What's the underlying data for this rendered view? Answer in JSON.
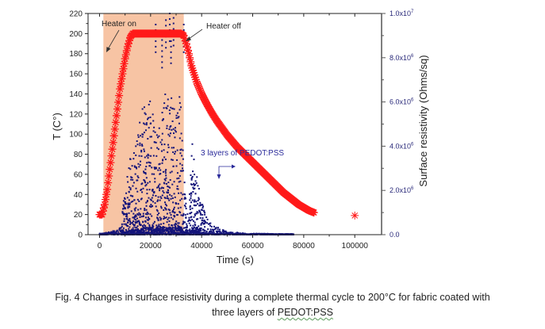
{
  "chart_data": {
    "type": "scatter",
    "title": "",
    "xlabel": "Time (s)",
    "ylabel_left": "T (C°)",
    "ylabel_right": "Surface resistivity (Ohms/sq)",
    "xlim": [
      -4500,
      110500
    ],
    "ylim_left": [
      0,
      220
    ],
    "ylim_right": [
      0,
      10000000
    ],
    "x_ticks": [
      0,
      20000,
      40000,
      60000,
      80000,
      100000
    ],
    "x_tick_labels": [
      "0",
      "20000",
      "40000",
      "60000",
      "80000",
      "100000"
    ],
    "y_left_ticks": [
      0,
      20,
      40,
      60,
      80,
      100,
      120,
      140,
      160,
      180,
      200,
      220
    ],
    "y_left_tick_labels": [
      "0",
      "20",
      "40",
      "60",
      "80",
      "100",
      "120",
      "140",
      "160",
      "180",
      "200",
      "220"
    ],
    "y_right_ticks": [
      0,
      2000000,
      4000000,
      6000000,
      8000000,
      10000000
    ],
    "y_right_tick_labels": [
      {
        "mantissa": "0.0",
        "exp": ""
      },
      {
        "mantissa": "2.0x10",
        "exp": "6"
      },
      {
        "mantissa": "4.0x10",
        "exp": "6"
      },
      {
        "mantissa": "6.0x10",
        "exp": "6"
      },
      {
        "mantissa": "8.0x10",
        "exp": "6"
      },
      {
        "mantissa": "1.0x10",
        "exp": "7"
      }
    ],
    "grid": false,
    "shaded_region": {
      "label": "Heater on period",
      "x_start": 1500,
      "x_end": 33000,
      "color": "#f7c4a4"
    },
    "series": [
      {
        "name": "Temperature",
        "axis": "left",
        "marker": "star",
        "color": "#ff1a1a",
        "points": [
          [
            0,
            20
          ],
          [
            1000,
            20
          ],
          [
            2000,
            30
          ],
          [
            3000,
            45
          ],
          [
            4000,
            65
          ],
          [
            5000,
            85
          ],
          [
            6000,
            105
          ],
          [
            7000,
            125
          ],
          [
            8000,
            145
          ],
          [
            9000,
            160
          ],
          [
            10000,
            175
          ],
          [
            11000,
            187
          ],
          [
            12000,
            196
          ],
          [
            13000,
            200
          ],
          [
            16000,
            200
          ],
          [
            20000,
            200
          ],
          [
            24000,
            200
          ],
          [
            28000,
            200
          ],
          [
            32000,
            200
          ],
          [
            33000,
            198
          ],
          [
            34000,
            190
          ],
          [
            35000,
            180
          ],
          [
            36000,
            168
          ],
          [
            38000,
            152
          ],
          [
            40000,
            140
          ],
          [
            42000,
            130
          ],
          [
            44000,
            121
          ],
          [
            46000,
            113
          ],
          [
            48000,
            106
          ],
          [
            50000,
            99
          ],
          [
            52000,
            93
          ],
          [
            54000,
            87
          ],
          [
            56000,
            82
          ],
          [
            58000,
            77
          ],
          [
            60000,
            72
          ],
          [
            62000,
            67
          ],
          [
            64000,
            62
          ],
          [
            66000,
            57
          ],
          [
            68000,
            52
          ],
          [
            70000,
            47
          ],
          [
            72000,
            42
          ],
          [
            74000,
            38
          ],
          [
            76000,
            34
          ],
          [
            78000,
            30
          ],
          [
            80000,
            27
          ],
          [
            82000,
            24
          ],
          [
            84000,
            22
          ],
          [
            100000,
            19
          ]
        ]
      },
      {
        "name": "3 layers of PEDOT:PSS",
        "axis": "right",
        "marker": "square",
        "color": "#14147a",
        "envelope": [
          [
            0,
            50000
          ],
          [
            5000,
            150000
          ],
          [
            8000,
            300000
          ],
          [
            9000,
            1200000
          ],
          [
            10000,
            2000000
          ],
          [
            12000,
            3500000
          ],
          [
            14000,
            4200000
          ],
          [
            16000,
            5500000
          ],
          [
            18000,
            6000000
          ],
          [
            20000,
            6500000
          ],
          [
            22000,
            6000000
          ],
          [
            24000,
            5000000
          ],
          [
            26000,
            7000000
          ],
          [
            28000,
            6800000
          ],
          [
            30000,
            5800000
          ],
          [
            31000,
            6500000
          ],
          [
            32000,
            7000000
          ],
          [
            33000,
            3000000
          ],
          [
            34000,
            1200000
          ],
          [
            35000,
            800000
          ],
          [
            36000,
            4500000
          ],
          [
            37000,
            3500000
          ],
          [
            38000,
            2800000
          ],
          [
            40000,
            1500000
          ],
          [
            42000,
            800000
          ],
          [
            45000,
            400000
          ],
          [
            50000,
            150000
          ],
          [
            55000,
            80000
          ],
          [
            60000,
            50000
          ],
          [
            76000,
            30000
          ]
        ],
        "outliers": [
          [
            27500,
            10000000
          ],
          [
            29000,
            9800000
          ],
          [
            22000,
            9500000
          ],
          [
            26000,
            9700000
          ],
          [
            24500,
            8800000
          ],
          [
            33000,
            9500000
          ],
          [
            28000,
            9000000
          ]
        ]
      }
    ],
    "annotations": [
      {
        "text": "Heater on",
        "arrow_to": [
          1500,
          180
        ]
      },
      {
        "text": "Heater off",
        "arrow_to": [
          33000,
          199
        ]
      },
      {
        "text": "3 layers of PEDOT:PSS",
        "arrow": "points right (to right axis) and down"
      }
    ]
  },
  "caption": {
    "line1": "Fig. 4 Changes in surface resistivity during a complete thermal cycle to 200°C for fabric coated with",
    "line2_prefix": "three layers of ",
    "line2_term": "PEDOT:PSS"
  }
}
